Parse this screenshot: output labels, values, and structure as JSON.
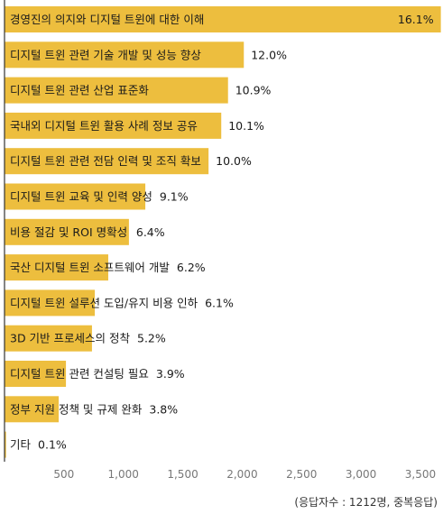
{
  "chart_data": {
    "type": "bar",
    "orientation": "horizontal",
    "categories": [
      "경영진의 의지와 디지털 트윈에 대한 이해",
      "디지털 트윈 관련 기술 개발 및 성능 향상",
      "디지털 트윈 관련 산업 표준화",
      "국내외 디지털 트윈 활용 사례 정보 공유",
      "디지털 트윈 관련 전담 인력 및 조직 확보",
      "디지털 트윈 교육 및 인력 양성",
      "비용 절감 및 ROI 명확성",
      "국산 디지털 트윈 소프트웨어 개발",
      "디지털 트윈 설루션 도입/유지 비용 인하",
      "3D 기반 프로세스의 정착",
      "디지털 트윈 관련 컨설팅 필요",
      "정부 지원 정책 및 규제 완화",
      "기타"
    ],
    "values": [
      3672,
      2014,
      1881,
      1824,
      1717,
      1185,
      1047,
      873,
      760,
      736,
      517,
      456,
      13
    ],
    "value_labels": [
      "16.1%",
      "12.0%",
      "10.9%",
      "10.1%",
      "10.0%",
      "9.1%",
      "6.4%",
      "6.2%",
      "6.1%",
      "5.2%",
      "3.9%",
      "3.8%",
      "0.1%"
    ],
    "xlim": [
      0,
      3700
    ],
    "x_ticks": [
      500,
      1000,
      1500,
      2000,
      2500,
      3000,
      3500
    ],
    "x_tick_labels": [
      "500",
      "1,000",
      "1,500",
      "2,000",
      "2,500",
      "3,000",
      "3,500"
    ],
    "grid": false,
    "bar_color": "#EDBE3E"
  },
  "footnote": "(응답자수 : 1212명, 중복응답)"
}
